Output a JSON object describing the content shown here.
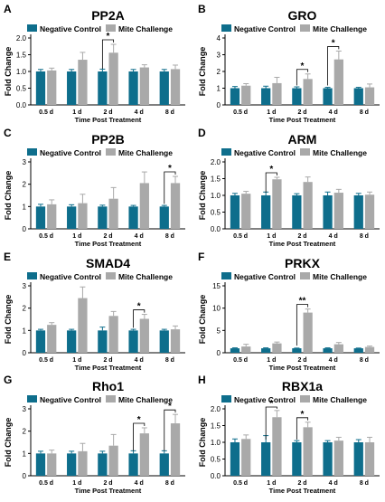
{
  "colors": {
    "negative": "#0e6e8c",
    "mite": "#a9a9a9",
    "axis": "#000000"
  },
  "chart_data": [
    {
      "panel_letter": "A",
      "title": "PP2A",
      "type": "bar",
      "xlabel": "Time Post Treatment",
      "ylabel": "Fold Change",
      "categories": [
        "0.5 d",
        "1 d",
        "2 d",
        "4 d",
        "8 d"
      ],
      "ylim": [
        0,
        2.0
      ],
      "yticks": [
        "0.0",
        "0.5",
        "1.0",
        "1.5",
        "2.0"
      ],
      "ytick_values": [
        0,
        0.5,
        1.0,
        1.5,
        2.0
      ],
      "legend": [
        "Negative Control",
        "Mite Challenge"
      ],
      "legend_position": "top",
      "series": [
        {
          "name": "Negative Control",
          "values": [
            1.0,
            1.0,
            1.0,
            1.0,
            1.0
          ],
          "errors": [
            0.06,
            0.06,
            0.07,
            0.06,
            0.06
          ]
        },
        {
          "name": "Mite Challenge",
          "values": [
            1.03,
            1.35,
            1.56,
            1.12,
            1.07
          ],
          "errors": [
            0.07,
            0.22,
            0.25,
            0.08,
            0.12
          ]
        }
      ],
      "significance": [
        {
          "category_index": 2,
          "label": "*"
        }
      ]
    },
    {
      "panel_letter": "B",
      "title": "GRO",
      "type": "bar",
      "xlabel": "Time Post Treatment",
      "ylabel": "Fold Change",
      "categories": [
        "0.5 d",
        "1 d",
        "2 d",
        "4 d",
        "8 d"
      ],
      "ylim": [
        0,
        4
      ],
      "yticks": [
        "0",
        "1",
        "2",
        "3",
        "4"
      ],
      "ytick_values": [
        0,
        1,
        2,
        3,
        4
      ],
      "legend": [
        "Negative Control",
        "Mite Challenge"
      ],
      "legend_position": "top",
      "series": [
        {
          "name": "Negative Control",
          "values": [
            1.0,
            1.0,
            1.0,
            1.0,
            1.0
          ],
          "errors": [
            0.1,
            0.12,
            0.08,
            0.05,
            0.05
          ]
        },
        {
          "name": "Mite Challenge",
          "values": [
            1.15,
            1.3,
            1.55,
            2.72,
            1.05
          ],
          "errors": [
            0.12,
            0.35,
            0.3,
            0.5,
            0.2
          ]
        }
      ],
      "significance": [
        {
          "category_index": 2,
          "label": "*"
        },
        {
          "category_index": 3,
          "label": "*"
        }
      ]
    },
    {
      "panel_letter": "C",
      "title": "PP2B",
      "type": "bar",
      "xlabel": "Time Post Treatment",
      "ylabel": "Fold Change",
      "categories": [
        "0.5 d",
        "1 d",
        "2 d",
        "4 d",
        "8 d"
      ],
      "ylim": [
        0,
        3
      ],
      "yticks": [
        "0",
        "1",
        "2",
        "3"
      ],
      "ytick_values": [
        0,
        1,
        2,
        3
      ],
      "legend": [
        "Negative Control",
        "Mite Challenge"
      ],
      "legend_position": "top",
      "series": [
        {
          "name": "Negative Control",
          "values": [
            1.0,
            1.0,
            1.0,
            1.0,
            1.0
          ],
          "errors": [
            0.1,
            0.08,
            0.06,
            0.05,
            0.05
          ]
        },
        {
          "name": "Mite Challenge",
          "values": [
            1.1,
            1.15,
            1.35,
            2.05,
            2.05
          ],
          "errors": [
            0.2,
            0.4,
            0.5,
            0.5,
            0.3
          ]
        }
      ],
      "significance": [
        {
          "category_index": 4,
          "label": "*"
        }
      ]
    },
    {
      "panel_letter": "D",
      "title": "ARM",
      "type": "bar",
      "xlabel": "Time Post Treatment",
      "ylabel": "Fold Change",
      "categories": [
        "0.5 d",
        "1 d",
        "2 d",
        "4 d",
        "8 d"
      ],
      "ylim": [
        0,
        2.0
      ],
      "yticks": [
        "0.0",
        "0.5",
        "1.0",
        "1.5",
        "2.0"
      ],
      "ytick_values": [
        0,
        0.5,
        1.0,
        1.5,
        2.0
      ],
      "legend": [
        "Negative Control",
        "Mite Challenge"
      ],
      "legend_position": "top",
      "series": [
        {
          "name": "Negative Control",
          "values": [
            1.0,
            1.0,
            1.0,
            1.0,
            1.0
          ],
          "errors": [
            0.06,
            0.1,
            0.05,
            0.1,
            0.06
          ]
        },
        {
          "name": "Mite Challenge",
          "values": [
            1.05,
            1.48,
            1.4,
            1.08,
            1.02
          ],
          "errors": [
            0.07,
            0.06,
            0.15,
            0.1,
            0.08
          ]
        }
      ],
      "significance": [
        {
          "category_index": 1,
          "label": "*"
        }
      ]
    },
    {
      "panel_letter": "E",
      "title": "SMAD4",
      "type": "bar",
      "xlabel": "Time Post Treatment",
      "ylabel": "Fold Change",
      "categories": [
        "0.5 d",
        "1 d",
        "2 d",
        "4 d",
        "8 d"
      ],
      "ylim": [
        0,
        3
      ],
      "yticks": [
        "0",
        "1",
        "2",
        "3"
      ],
      "ytick_values": [
        0,
        1,
        2,
        3
      ],
      "legend": [
        "Negative Control",
        "Mite Challenge"
      ],
      "legend_position": "top",
      "series": [
        {
          "name": "Negative Control",
          "values": [
            1.0,
            1.0,
            1.0,
            1.0,
            1.0
          ],
          "errors": [
            0.05,
            0.05,
            0.15,
            0.05,
            0.05
          ]
        },
        {
          "name": "Mite Challenge",
          "values": [
            1.25,
            2.45,
            1.65,
            1.52,
            1.05
          ],
          "errors": [
            0.1,
            0.5,
            0.2,
            0.2,
            0.15
          ]
        }
      ],
      "significance": [
        {
          "category_index": 3,
          "label": "*"
        }
      ]
    },
    {
      "panel_letter": "F",
      "title": "PRKX",
      "type": "bar",
      "xlabel": "Time Post Treatment",
      "ylabel": "Fold Change",
      "categories": [
        "0.5 d",
        "1 d",
        "2 d",
        "4 d",
        "8 d"
      ],
      "ylim": [
        0,
        15
      ],
      "yticks": [
        "0",
        "5",
        "10",
        "15"
      ],
      "ytick_values": [
        0,
        5,
        10,
        15
      ],
      "legend": [
        "Negative Control",
        "Mite Challenge"
      ],
      "legend_position": "top",
      "series": [
        {
          "name": "Negative Control",
          "values": [
            1.0,
            1.0,
            1.0,
            1.0,
            1.0
          ],
          "errors": [
            0.1,
            0.1,
            0.05,
            0.1,
            0.05
          ]
        },
        {
          "name": "Mite Challenge",
          "values": [
            1.4,
            2.1,
            9.0,
            1.9,
            1.3
          ],
          "errors": [
            0.5,
            0.3,
            0.8,
            0.4,
            0.2
          ]
        }
      ],
      "significance": [
        {
          "category_index": 2,
          "label": "**"
        }
      ]
    },
    {
      "panel_letter": "G",
      "title": "Rho1",
      "type": "bar",
      "xlabel": "Time Post Treatment",
      "ylabel": "Fold Change",
      "categories": [
        "0.5 d",
        "1 d",
        "2 d",
        "4 d",
        "8 d"
      ],
      "ylim": [
        0,
        3
      ],
      "yticks": [
        "0",
        "1",
        "2",
        "3"
      ],
      "ytick_values": [
        0,
        1,
        2,
        3
      ],
      "legend": [
        "Negative Control",
        "Mite Challenge"
      ],
      "legend_position": "top",
      "series": [
        {
          "name": "Negative Control",
          "values": [
            1.0,
            1.0,
            1.0,
            1.0,
            1.0
          ],
          "errors": [
            0.1,
            0.1,
            0.1,
            0.12,
            0.12
          ]
        },
        {
          "name": "Mite Challenge",
          "values": [
            1.0,
            1.1,
            1.35,
            1.9,
            2.35
          ],
          "errors": [
            0.15,
            0.35,
            0.5,
            0.25,
            0.4
          ]
        }
      ],
      "significance": [
        {
          "category_index": 3,
          "label": "*"
        },
        {
          "category_index": 4,
          "label": "*"
        }
      ]
    },
    {
      "panel_letter": "H",
      "title": "RBX1a",
      "type": "bar",
      "xlabel": "Time Post Treatment",
      "ylabel": "Fold Change",
      "categories": [
        "0.5 d",
        "1 d",
        "2 d",
        "4 d",
        "8 d"
      ],
      "ylim": [
        0,
        2.0
      ],
      "yticks": [
        "0.0",
        "0.5",
        "1.0",
        "1.5",
        "2.0"
      ],
      "ytick_values": [
        0,
        0.5,
        1.0,
        1.5,
        2.0
      ],
      "legend": [
        "Negative Control",
        "Mite Challenge"
      ],
      "legend_position": "top",
      "series": [
        {
          "name": "Negative Control",
          "values": [
            1.0,
            1.0,
            1.0,
            1.0,
            1.0
          ],
          "errors": [
            0.1,
            0.2,
            0.05,
            0.05,
            0.08
          ]
        },
        {
          "name": "Mite Challenge",
          "values": [
            1.1,
            1.75,
            1.45,
            1.05,
            1.0
          ],
          "errors": [
            0.12,
            0.2,
            0.15,
            0.1,
            0.15
          ]
        }
      ],
      "significance": [
        {
          "category_index": 1,
          "label": "*"
        },
        {
          "category_index": 2,
          "label": "*"
        }
      ]
    }
  ]
}
